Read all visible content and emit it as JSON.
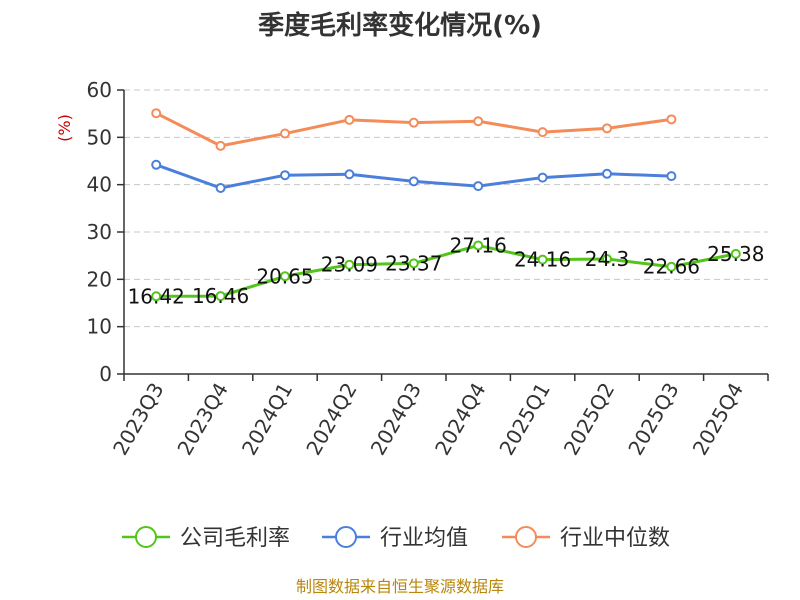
{
  "chart_data": {
    "type": "line",
    "title": "季度毛利率变化情况(%)",
    "ylabel": "(%)",
    "xlabel": "",
    "categories": [
      "2023Q3",
      "2023Q4",
      "2024Q1",
      "2024Q2",
      "2024Q3",
      "2024Q4",
      "2025Q1",
      "2025Q2",
      "2025Q3",
      "2025Q4"
    ],
    "ylim": [
      0,
      60
    ],
    "yticks": [
      0,
      10,
      20,
      30,
      40,
      50,
      60
    ],
    "grid": true,
    "legend_position": "bottom",
    "series": [
      {
        "name": "公司毛利率",
        "color": "#52c41a",
        "values": [
          16.42,
          16.46,
          20.65,
          23.09,
          23.37,
          27.16,
          24.16,
          24.3,
          22.66,
          25.38
        ],
        "labels": [
          "16.42",
          "16.46",
          "20.65",
          "23.09",
          "23.37",
          "27.16",
          "24.16",
          "24.3",
          "22.66",
          "25.38"
        ]
      },
      {
        "name": "行业均值",
        "color": "#4a7fdc",
        "values": [
          44.2,
          39.3,
          42.0,
          42.2,
          40.7,
          39.7,
          41.5,
          42.3,
          41.8,
          null
        ]
      },
      {
        "name": "行业中位数",
        "color": "#f48c5a",
        "values": [
          55.1,
          48.2,
          50.8,
          53.7,
          53.1,
          53.4,
          51.1,
          51.9,
          53.8,
          null
        ]
      }
    ]
  },
  "source": "制图数据来自恒生聚源数据库"
}
